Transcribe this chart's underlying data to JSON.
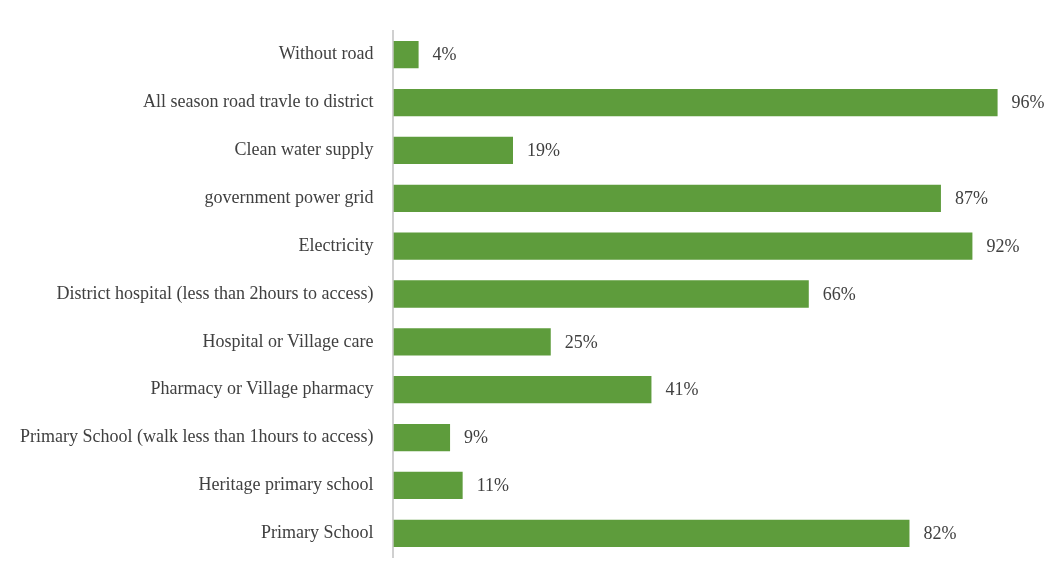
{
  "chart_data": {
    "type": "bar",
    "orientation": "horizontal",
    "categories": [
      "Without road",
      "All season road travle to district",
      "Clean water supply",
      "government power grid",
      "Electricity",
      "District hospital (less than 2hours to access)",
      "Hospital or Village care",
      "Pharmacy or Village pharmacy",
      "Primary School (walk less than 1hours to access)",
      "Heritage primary school",
      "Primary School"
    ],
    "values": [
      4,
      96,
      19,
      87,
      92,
      66,
      25,
      41,
      9,
      11,
      82
    ],
    "value_labels": [
      "4%",
      "96%",
      "19%",
      "87%",
      "92%",
      "66%",
      "25%",
      "41%",
      "9%",
      "11%",
      "82%"
    ],
    "color": "#5e9c3c"
  }
}
